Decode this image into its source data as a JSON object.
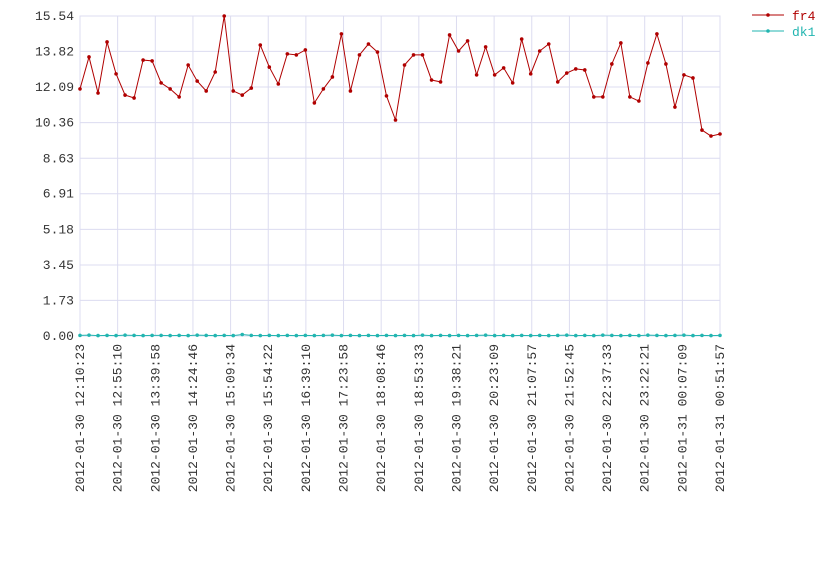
{
  "chart_data": {
    "type": "line",
    "xticks": [
      "2012-01-30 12:10:23",
      "2012-01-30 12:55:10",
      "2012-01-30 13:39:58",
      "2012-01-30 14:24:46",
      "2012-01-30 15:09:34",
      "2012-01-30 15:54:22",
      "2012-01-30 16:39:10",
      "2012-01-30 17:23:58",
      "2012-01-30 18:08:46",
      "2012-01-30 18:53:33",
      "2012-01-30 19:38:21",
      "2012-01-30 20:23:09",
      "2012-01-30 21:07:57",
      "2012-01-30 21:52:45",
      "2012-01-30 22:37:33",
      "2012-01-30 23:22:21",
      "2012-01-31 00:07:09",
      "2012-01-31 00:51:57"
    ],
    "ylim": [
      0,
      15.54
    ],
    "yticks": [
      {
        "value": 0,
        "label": "0.00"
      },
      1.73,
      3.45,
      5.18,
      6.91,
      8.63,
      10.36,
      12.09,
      13.82,
      15.54
    ],
    "grid": true,
    "series": [
      {
        "name": "fr4",
        "color": "#b00000",
        "values": [
          12.0,
          13.55,
          11.8,
          14.28,
          12.73,
          11.7,
          11.56,
          13.4,
          13.36,
          12.29,
          12.0,
          11.61,
          13.16,
          12.38,
          11.9,
          12.82,
          15.54,
          11.9,
          11.7,
          12.04,
          14.13,
          13.06,
          12.24,
          13.7,
          13.65,
          13.89,
          11.32,
          12.0,
          12.58,
          14.67,
          11.9,
          13.65,
          14.18,
          13.79,
          11.66,
          10.49,
          13.16,
          13.65,
          13.65,
          12.43,
          12.34,
          14.62,
          13.84,
          14.33,
          12.68,
          14.04,
          12.68,
          13.02,
          12.29,
          14.42,
          12.73,
          13.84,
          14.18,
          12.34,
          12.77,
          12.97,
          12.92,
          11.61,
          11.61,
          13.21,
          14.23,
          11.61,
          11.41,
          13.26,
          14.67,
          13.21,
          11.12,
          12.68,
          12.53,
          10.0,
          9.71,
          9.81
        ]
      },
      {
        "name": "dk1",
        "color": "#22b5b0",
        "values": [
          0.03,
          0.04,
          0.02,
          0.03,
          0.02,
          0.04,
          0.03,
          0.02,
          0.03,
          0.03,
          0.02,
          0.03,
          0.02,
          0.04,
          0.03,
          0.02,
          0.03,
          0.02,
          0.07,
          0.03,
          0.02,
          0.03,
          0.02,
          0.03,
          0.02,
          0.03,
          0.02,
          0.03,
          0.04,
          0.02,
          0.03,
          0.02,
          0.03,
          0.02,
          0.03,
          0.02,
          0.03,
          0.02,
          0.04,
          0.02,
          0.03,
          0.02,
          0.03,
          0.02,
          0.03,
          0.04,
          0.02,
          0.03,
          0.02,
          0.03,
          0.02,
          0.03,
          0.02,
          0.03,
          0.04,
          0.02,
          0.03,
          0.02,
          0.04,
          0.03,
          0.02,
          0.03,
          0.02,
          0.04,
          0.03,
          0.02,
          0.03,
          0.04,
          0.02,
          0.03,
          0.02,
          0.03
        ]
      }
    ]
  }
}
